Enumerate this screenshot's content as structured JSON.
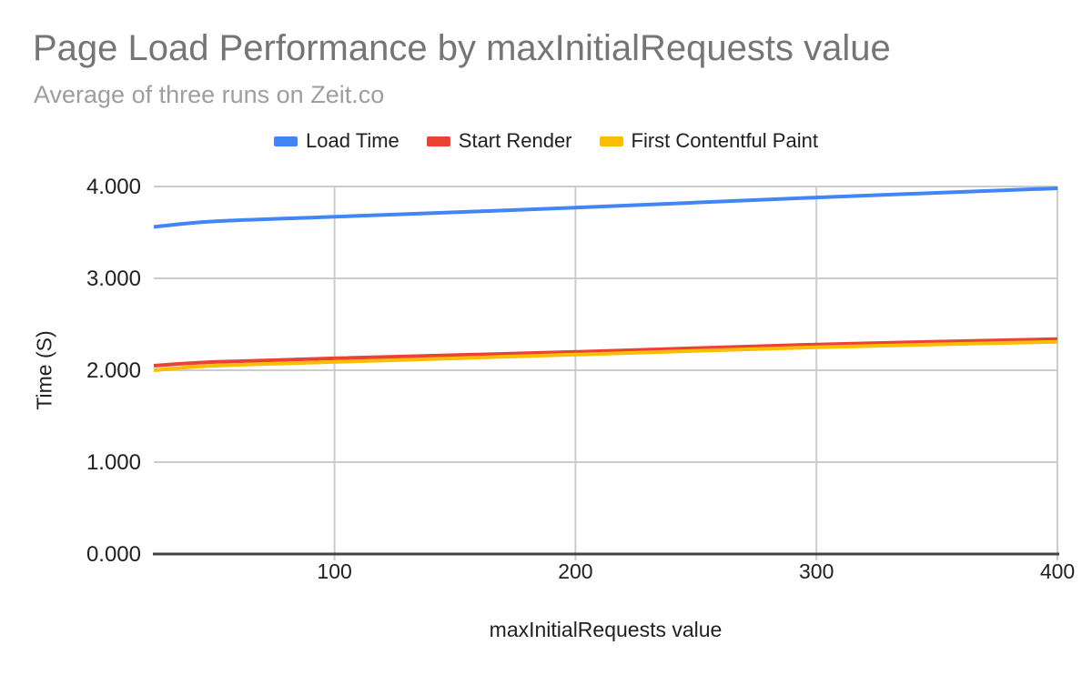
{
  "chart_data": {
    "type": "line",
    "title": "Page Load Performance by maxInitialRequests value",
    "subtitle": "Average of three runs on Zeit.co",
    "xlabel": "maxInitialRequests value",
    "ylabel": "Time (S)",
    "x": [
      25,
      50,
      100,
      200,
      300,
      400
    ],
    "series": [
      {
        "name": "Load Time",
        "color": "#4285f4",
        "values": [
          3.56,
          3.62,
          3.67,
          3.77,
          3.88,
          3.98
        ]
      },
      {
        "name": "Start Render",
        "color": "#ea4335",
        "values": [
          2.05,
          2.09,
          2.13,
          2.2,
          2.28,
          2.34
        ]
      },
      {
        "name": "First Contentful Paint",
        "color": "#fbbc04",
        "values": [
          2.0,
          2.05,
          2.09,
          2.17,
          2.25,
          2.31
        ]
      }
    ],
    "xlim": [
      25,
      400
    ],
    "ylim": [
      0,
      4
    ],
    "x_ticks": [
      {
        "value": 100,
        "label": "100"
      },
      {
        "value": 200,
        "label": "200"
      },
      {
        "value": 300,
        "label": "300"
      },
      {
        "value": 400,
        "label": "400"
      }
    ],
    "y_ticks": [
      {
        "value": 0,
        "label": "0.000"
      },
      {
        "value": 1,
        "label": "1.000"
      },
      {
        "value": 2,
        "label": "2.000"
      },
      {
        "value": 3,
        "label": "3.000"
      },
      {
        "value": 4,
        "label": "4.000"
      }
    ],
    "grid": true,
    "line_style": "smooth",
    "legend_position": "top",
    "colors": {
      "background": "#ffffff",
      "title": "#757575",
      "subtitle": "#9e9e9e",
      "axis_text": "#212121",
      "gridline": "#cccccc",
      "baseline": "#424242"
    }
  }
}
